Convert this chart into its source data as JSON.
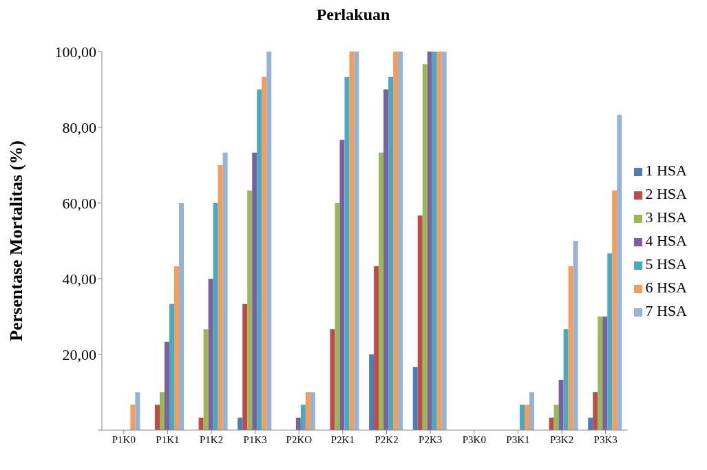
{
  "chart_data": {
    "type": "bar",
    "title": "Perlakuan",
    "ylabel": "Persentase Mortalitas (%)",
    "categories": [
      "P1K0",
      "P1K1",
      "P1K2",
      "P1K3",
      "P2KO",
      "P2K1",
      "P2K2",
      "P2K3",
      "P3K0",
      "P3K1",
      "P3K2",
      "P3K3"
    ],
    "series": [
      {
        "name": "1 HSA",
        "color": "#4a7ebb",
        "values": [
          0,
          0,
          0,
          3.3,
          0,
          0,
          20,
          16.7,
          0,
          0,
          0,
          3.3
        ]
      },
      {
        "name": "2 HSA",
        "color": "#be4b48",
        "values": [
          0,
          6.7,
          3.3,
          33.3,
          0,
          26.7,
          43.3,
          56.7,
          0,
          0,
          3.3,
          10
        ]
      },
      {
        "name": "3 HSA",
        "color": "#98b954",
        "values": [
          0,
          10,
          26.7,
          63.3,
          0,
          60,
          73.3,
          96.7,
          0,
          0,
          6.7,
          30
        ]
      },
      {
        "name": "4 HSA",
        "color": "#7d60a0",
        "values": [
          0,
          23.3,
          40,
          73.3,
          3.3,
          76.7,
          90,
          100,
          0,
          0,
          13.3,
          30
        ]
      },
      {
        "name": "5 HSA",
        "color": "#46aac5",
        "values": [
          0,
          33.3,
          60,
          90,
          6.7,
          93.3,
          93.3,
          100,
          0,
          6.7,
          26.7,
          46.7
        ]
      },
      {
        "name": "6 HSA",
        "color": "#f59d56",
        "values": [
          6.7,
          43.3,
          70,
          93.3,
          10,
          100,
          100,
          100,
          0,
          6.7,
          43.3,
          63.3
        ]
      },
      {
        "name": "7 HSA",
        "color": "#95b3d7",
        "values": [
          10,
          60,
          73.3,
          100,
          10,
          100,
          100,
          100,
          0,
          10,
          50,
          83.3
        ]
      }
    ],
    "ylim": [
      0,
      100
    ],
    "yticks": [
      {
        "value": 0,
        "label": null
      },
      {
        "value": 20,
        "label": "20,00"
      },
      {
        "value": 40,
        "label": "40,00"
      },
      {
        "value": 60,
        "label": "60,00"
      },
      {
        "value": 80,
        "label": "80,00"
      },
      {
        "value": 100,
        "label": "100,00"
      }
    ],
    "grid": false,
    "legend": "right"
  }
}
